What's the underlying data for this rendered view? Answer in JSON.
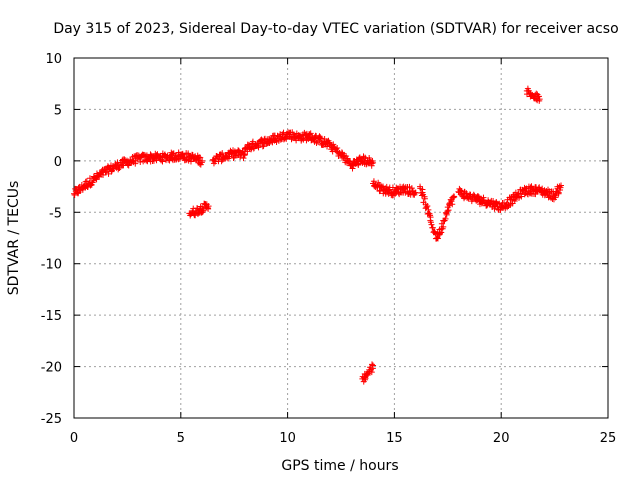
{
  "chart_data": {
    "type": "scatter",
    "title": "Day 315 of 2023, Sidereal Day-to-day VTEC variation (SDTVAR) for receiver acso",
    "xlabel": "GPS time / hours",
    "ylabel": "SDTVAR / TECUs",
    "xlim": [
      0,
      25
    ],
    "ylim": [
      -25,
      10
    ],
    "xticks": [
      0,
      5,
      10,
      15,
      20,
      25
    ],
    "yticks": [
      -25,
      -20,
      -15,
      -10,
      -5,
      0,
      5,
      10
    ],
    "grid": true,
    "marker": "+",
    "color": "#ff0000",
    "series": [
      {
        "name": "SDTVAR",
        "segments": [
          {
            "x": [
              0.0,
              0.5,
              1.0,
              1.5,
              2.0,
              2.5,
              3.0,
              3.5,
              4.0,
              4.5,
              5.0,
              5.5,
              6.0
            ],
            "y": [
              -3.2,
              -2.4,
              -1.7,
              -1.0,
              -0.5,
              -0.1,
              0.2,
              0.3,
              0.3,
              0.4,
              0.5,
              0.3,
              0.0
            ]
          },
          {
            "x": [
              5.4,
              5.7,
              6.0,
              6.3
            ],
            "y": [
              -5.1,
              -4.9,
              -4.6,
              -4.4
            ]
          },
          {
            "x": [
              6.5,
              7.0,
              7.5,
              8.0
            ],
            "y": [
              0.1,
              0.4,
              0.7,
              0.6
            ]
          },
          {
            "x": [
              8.0,
              8.5,
              9.0,
              9.5,
              10.0,
              10.5,
              11.0,
              11.5,
              12.0,
              12.5,
              13.0,
              13.5,
              14.0
            ],
            "y": [
              1.2,
              1.6,
              1.9,
              2.2,
              2.6,
              2.3,
              2.4,
              2.0,
              1.5,
              0.6,
              -0.4,
              0.1,
              -0.2
            ]
          },
          {
            "x": [
              13.5,
              13.7,
              13.9,
              14.0
            ],
            "y": [
              -21.2,
              -20.8,
              -20.3,
              -19.9
            ]
          },
          {
            "x": [
              14.0,
              14.5,
              15.0,
              15.5,
              16.0
            ],
            "y": [
              -2.2,
              -2.8,
              -3.0,
              -2.7,
              -3.1
            ]
          },
          {
            "x": [
              16.2,
              16.5,
              16.8,
              17.0,
              17.2,
              17.5,
              17.8
            ],
            "y": [
              -2.5,
              -4.5,
              -6.5,
              -7.5,
              -6.6,
              -4.5,
              -3.5
            ]
          },
          {
            "x": [
              18.0,
              18.5,
              19.0,
              19.5,
              20.0,
              20.5,
              21.0,
              21.5,
              22.0,
              22.5,
              22.8
            ],
            "y": [
              -3.0,
              -3.5,
              -3.8,
              -4.1,
              -4.5,
              -3.8,
              -3.0,
              -2.8,
              -3.0,
              -3.4,
              -2.4
            ]
          },
          {
            "x": [
              21.2,
              21.5,
              21.8
            ],
            "y": [
              6.8,
              6.3,
              6.0
            ]
          }
        ]
      }
    ]
  }
}
